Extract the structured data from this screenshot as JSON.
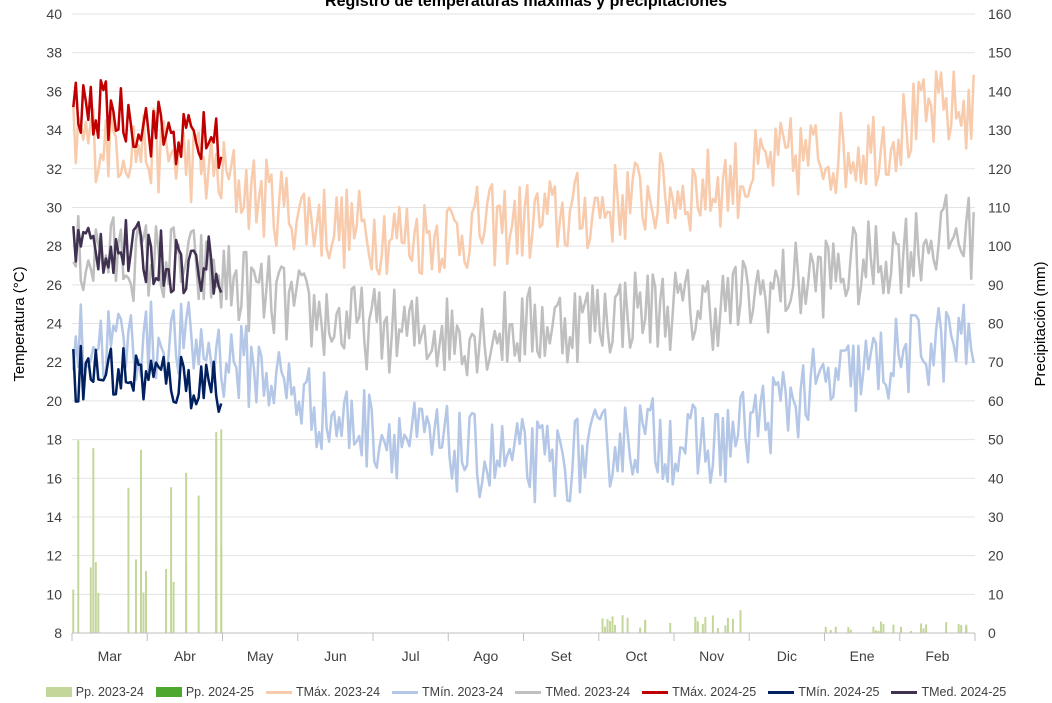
{
  "chart_data": {
    "type": "line",
    "title": "Registro de temperaturas máximas y precipitaciones",
    "ylabel_left": "Temperatura (°C)",
    "ylabel_right": "Precipitación (mm)",
    "ylim_left": [
      8,
      40
    ],
    "ylim_right": [
      0,
      160
    ],
    "yticks_left": [
      "8",
      "10",
      "12",
      "14",
      "16",
      "18",
      "20",
      "22",
      "24",
      "26",
      "28",
      "30",
      "32",
      "34",
      "36",
      "38",
      "40"
    ],
    "yticks_right": [
      "0",
      "10",
      "20",
      "30",
      "40",
      "50",
      "60",
      "70",
      "80",
      "90",
      "100",
      "110",
      "120",
      "130",
      "140",
      "150",
      "160"
    ],
    "months": [
      "Mar",
      "Abr",
      "May",
      "Jun",
      "Jul",
      "Ago",
      "Set",
      "Oct",
      "Nov",
      "Dic",
      "Ene",
      "Feb"
    ],
    "grid": true,
    "legend_position": "bottom",
    "colors": {
      "pp_2324": "#c4d79b",
      "pp_2425": "#4ea72e",
      "tmax_2324": "#f8cbad",
      "tmin_2324": "#b4c7e7",
      "tmed_2324": "#bfbfbf",
      "tmax_2425": "#c00000",
      "tmin_2425": "#002060",
      "tmed_2425": "#403151"
    },
    "legend": [
      {
        "label": "Pp. 2023-24",
        "kind": "bar",
        "color": "#c4d79b"
      },
      {
        "label": "Pp. 2024-25",
        "kind": "bar",
        "color": "#4ea72e"
      },
      {
        "label": "TMáx. 2023-24",
        "kind": "line",
        "color": "#f8cbad"
      },
      {
        "label": "TMín. 2023-24",
        "kind": "line",
        "color": "#b4c7e7"
      },
      {
        "label": "TMed. 2023-24",
        "kind": "line",
        "color": "#bfbfbf"
      },
      {
        "label": "TMáx. 2024-25",
        "kind": "line",
        "color": "#c00000"
      },
      {
        "label": "TMín. 2024-25",
        "kind": "line",
        "color": "#002060"
      },
      {
        "label": "TMed. 2024-25",
        "kind": "line",
        "color": "#403151"
      }
    ],
    "series_2023_24": [
      {
        "name": "TMáx. 2023-24",
        "key": "tmax_2324",
        "month_means": [
          33.5,
          32.5,
          30.5,
          29.0,
          28.5,
          29.0,
          29.5,
          30.5,
          31.0,
          32.5,
          33.0,
          35.0
        ]
      },
      {
        "name": "TMed. 2023-24",
        "key": "tmed_2324",
        "month_means": [
          27.5,
          27.0,
          25.5,
          24.0,
          23.5,
          23.5,
          24.0,
          24.8,
          24.8,
          26.0,
          27.0,
          28.5
        ]
      },
      {
        "name": "TMín. 2023-24",
        "key": "tmin_2324",
        "month_means": [
          23.0,
          23.0,
          21.5,
          19.0,
          18.0,
          17.0,
          16.8,
          18.2,
          17.5,
          20.0,
          21.5,
          23.0
        ]
      }
    ],
    "series_2024_25": [
      {
        "name": "TMáx. 2024-25",
        "key": "tmax_2425",
        "month_means": [
          35.0,
          33.5
        ]
      },
      {
        "name": "TMed. 2024-25",
        "key": "tmed_2425",
        "month_means": [
          28.0,
          27.0
        ]
      },
      {
        "name": "TMín. 2024-25",
        "key": "tmin_2425",
        "month_means": [
          21.5,
          21.0
        ]
      }
    ],
    "precipitation_2023_24": [
      {
        "month": "Mar",
        "approx_max_mm": 58
      },
      {
        "month": "Abr",
        "approx_max_mm": 55
      },
      {
        "month": "Oct",
        "approx_max_mm": 6
      },
      {
        "month": "Nov",
        "approx_max_mm": 6
      },
      {
        "month": "Ene",
        "approx_max_mm": 3
      },
      {
        "month": "Feb",
        "approx_max_mm": 3
      }
    ]
  }
}
